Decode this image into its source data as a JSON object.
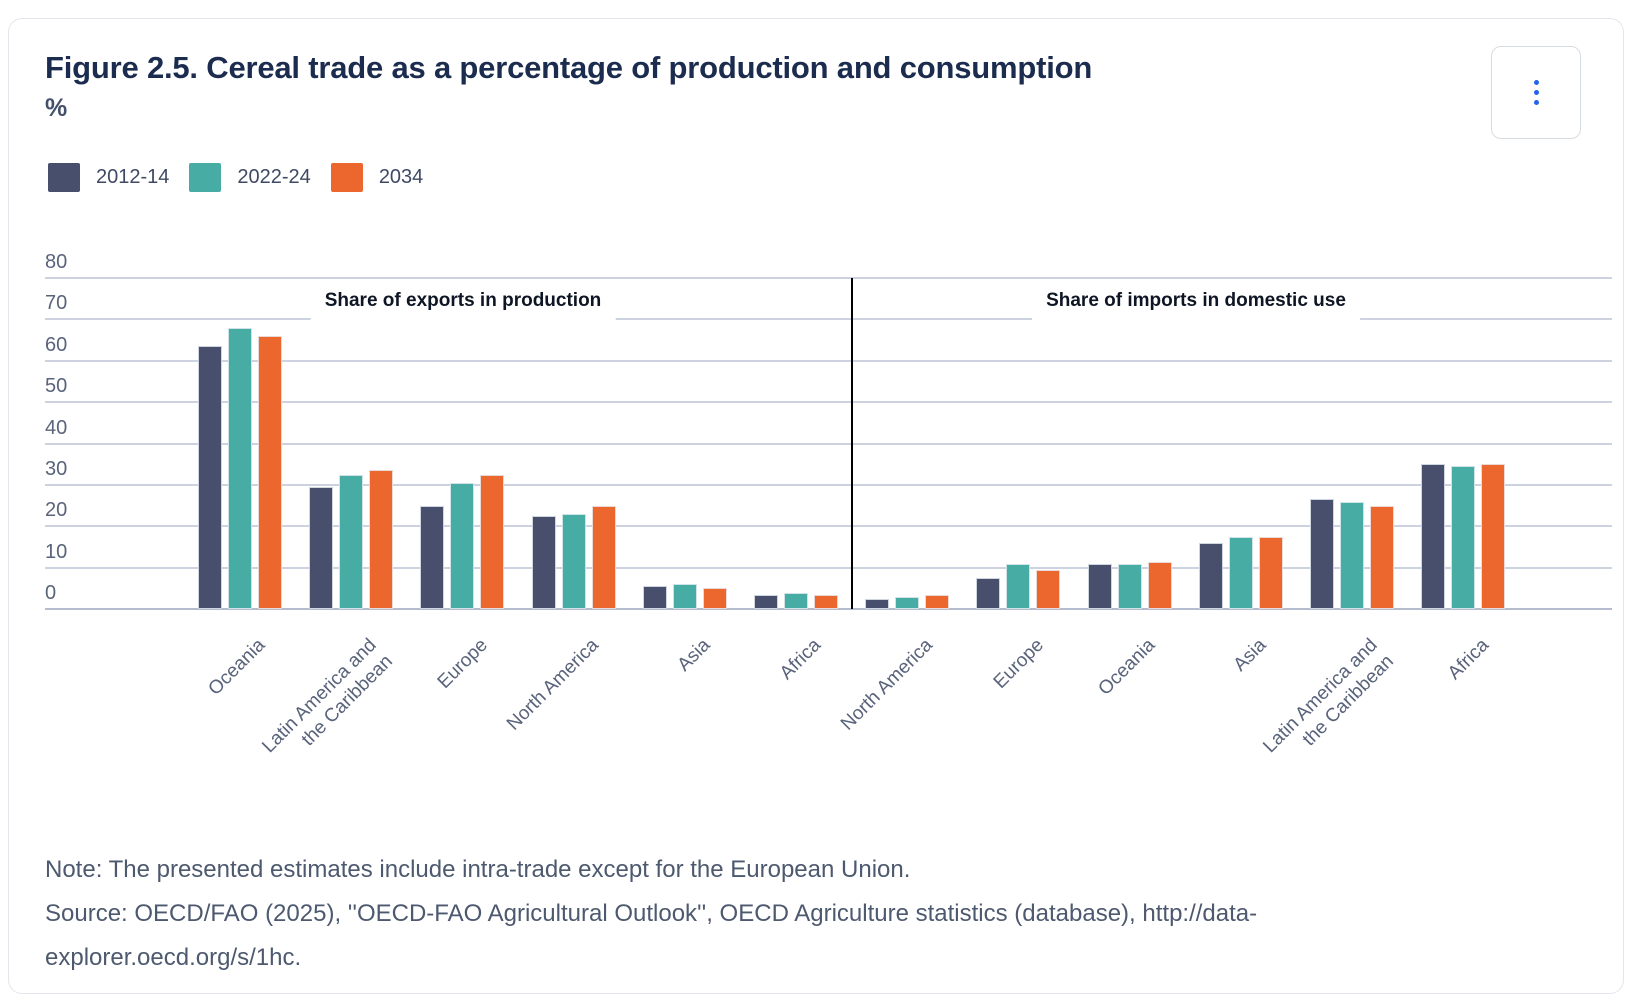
{
  "header": {
    "title": "Figure 2.5. Cereal trade as a percentage of production and consumption",
    "unit": "%"
  },
  "menu": {
    "icon": "kebab-vertical-icon",
    "dot_color": "#2563eb"
  },
  "legend": [
    {
      "label": "2012-14",
      "color": "#474F6D"
    },
    {
      "label": "2022-24",
      "color": "#46ACA4"
    },
    {
      "label": "2034",
      "color": "#EC672E"
    }
  ],
  "chart_data": {
    "type": "bar",
    "unit": "%",
    "ylim": [
      0,
      80
    ],
    "yticks": [
      0,
      10,
      20,
      30,
      40,
      50,
      60,
      70,
      80
    ],
    "grid": true,
    "legend_position": "top-left",
    "series_colors": [
      "#474F6D",
      "#46ACA4",
      "#EC672E"
    ],
    "grid_color": "#ccd2df",
    "axis_line_color": "#b4bccd",
    "divider_color": "#000000",
    "panels": [
      {
        "title": "Share of exports in production",
        "categories": [
          [
            "Oceania"
          ],
          [
            "Latin America and",
            "the Caribbean"
          ],
          [
            "Europe"
          ],
          [
            "North America"
          ],
          [
            "Asia"
          ],
          [
            "Africa"
          ]
        ],
        "series": [
          {
            "name": "2012-14",
            "values": [
              63.5,
              29.5,
              25,
              22.5,
              5.5,
              3.5
            ]
          },
          {
            "name": "2022-24",
            "values": [
              68,
              32.5,
              30.5,
              23,
              6,
              4
            ]
          },
          {
            "name": "2034",
            "values": [
              66,
              33.5,
              32.5,
              25,
              5,
              3.5
            ]
          }
        ]
      },
      {
        "title": "Share of imports in domestic use",
        "categories": [
          [
            "North America"
          ],
          [
            "Europe"
          ],
          [
            "Oceania"
          ],
          [
            "Asia"
          ],
          [
            "Latin America and",
            "the Caribbean"
          ],
          [
            "Africa"
          ]
        ],
        "series": [
          {
            "name": "2012-14",
            "values": [
              2.5,
              7.5,
              11,
              16,
              26.5,
              35
            ]
          },
          {
            "name": "2022-24",
            "values": [
              3,
              11,
              11,
              17.5,
              26,
              34.5
            ]
          },
          {
            "name": "2034",
            "values": [
              3.5,
              9.5,
              11.5,
              17.5,
              25,
              35
            ]
          }
        ]
      }
    ]
  },
  "footer": {
    "note": "Note: The presented estimates include intra-trade except for the European Union.",
    "source_line1": "Source: OECD/FAO (2025), ''OECD-FAO Agricultural Outlook'', OECD Agriculture statistics (database), http://data-",
    "source_line2": "explorer.oecd.org/s/1hc."
  }
}
